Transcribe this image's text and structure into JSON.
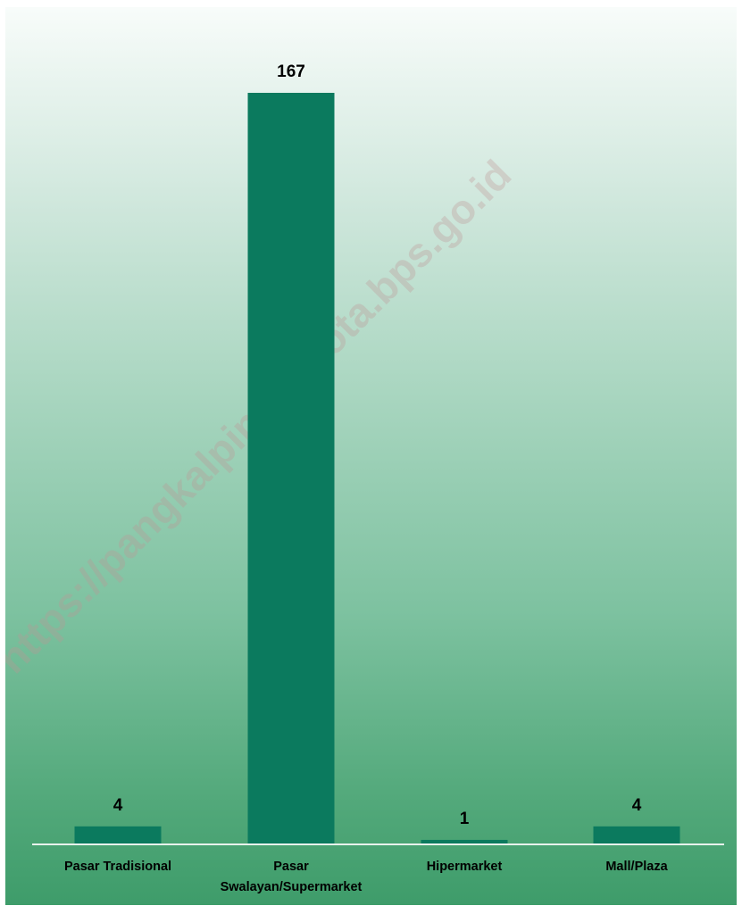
{
  "chart_data": {
    "type": "bar",
    "categories": [
      "Pasar Tradisional",
      "Pasar Swalayan/Supermarket",
      "Hipermarket",
      "Mall/Plaza"
    ],
    "category_lines": [
      [
        "Pasar Tradisional"
      ],
      [
        "Pasar",
        "Swalayan/Supermarket"
      ],
      [
        "Hipermarket"
      ],
      [
        "Mall/Plaza"
      ]
    ],
    "values": [
      4,
      167,
      1,
      4
    ],
    "data_labels": [
      "4",
      "167",
      "1",
      "4"
    ],
    "ylim": [
      0,
      167
    ],
    "grid": false,
    "legend": "none"
  },
  "watermark": "https://pangkalpinangkota.bps.go.id",
  "colors": {
    "bar": "#0b7a5e",
    "axis": "#e8f2ec"
  }
}
